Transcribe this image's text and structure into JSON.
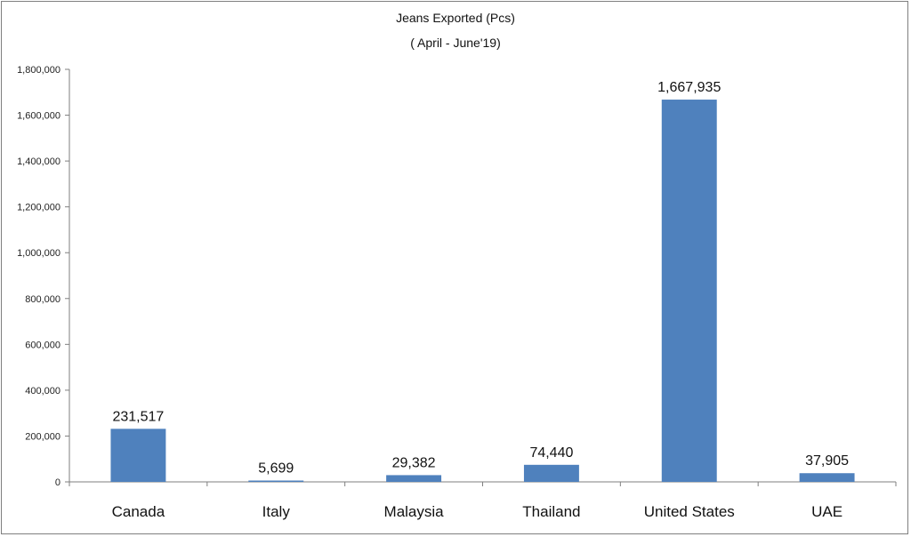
{
  "chart_data": {
    "type": "bar",
    "title": "Jeans Exported (Pcs)",
    "subtitle": "( April - June'19)",
    "xlabel": "",
    "ylabel": "",
    "categories": [
      "Canada",
      "Italy",
      "Malaysia",
      "Thailand",
      "United States",
      "UAE"
    ],
    "values": [
      231517,
      5699,
      29382,
      74440,
      1667935,
      37905
    ],
    "data_labels": [
      "231,517",
      "5,699",
      "29,382",
      "74,440",
      "1,667,935",
      "37,905"
    ],
    "ylim": [
      0,
      1800000
    ],
    "yticks": [
      0,
      200000,
      400000,
      600000,
      800000,
      1000000,
      1200000,
      1400000,
      1600000,
      1800000
    ],
    "ytick_labels": [
      "0",
      "200,000",
      "400,000",
      "600,000",
      "800,000",
      "1,000,000",
      "1,200,000",
      "1,400,000",
      "1,600,000",
      "1,800,000"
    ],
    "grid": false,
    "legend": "none",
    "bar_color": "#4f81bd"
  }
}
